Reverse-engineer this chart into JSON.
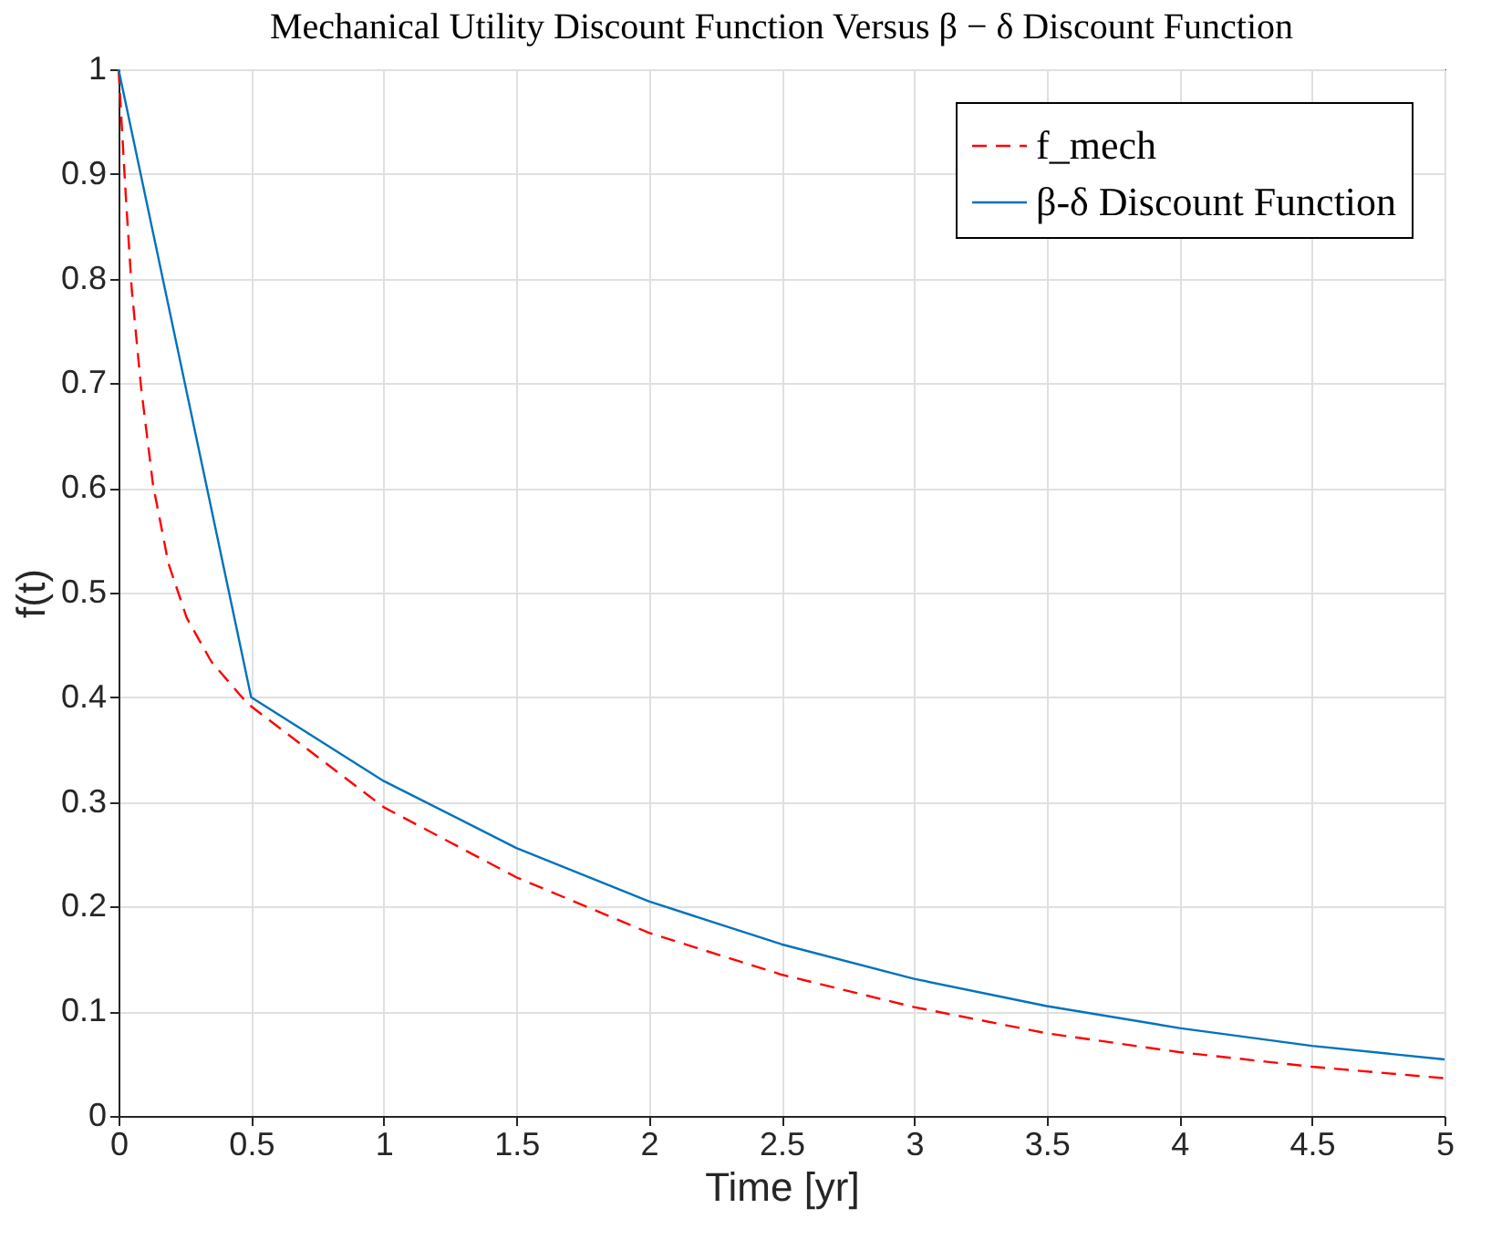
{
  "chart_data": {
    "type": "line",
    "title": "Mechanical Utility Discount Function Versus β − δ Discount Function",
    "xlabel": "Time [yr]",
    "ylabel": "f(t)",
    "xlim": [
      0,
      5
    ],
    "xticks": [
      0,
      0.5,
      1,
      1.5,
      2,
      2.5,
      3,
      3.5,
      4,
      4.5,
      5
    ],
    "ylim": [
      0,
      1
    ],
    "yticks": [
      0,
      0.1,
      0.2,
      0.3,
      0.4,
      0.5,
      0.6,
      0.7,
      0.8,
      0.9,
      1
    ],
    "grid": true,
    "legend": "top right",
    "marker": "none",
    "series": [
      {
        "name": "f_mech",
        "color": "#ff0000",
        "line_style": "dashed",
        "x": [
          0,
          0.028,
          0.05,
          0.085,
          0.13,
          0.188,
          0.257,
          0.35,
          0.486,
          1,
          1.5,
          2,
          2.5,
          3,
          3.5,
          4,
          4.5,
          5
        ],
        "values": [
          1,
          0.876,
          0.789,
          0.696,
          0.603,
          0.528,
          0.476,
          0.434,
          0.394,
          0.295,
          0.228,
          0.175,
          0.135,
          0.104,
          0.079,
          0.061,
          0.047,
          0.036
        ]
      },
      {
        "name": "β-δ Discount Function",
        "color": "#0072bd",
        "line_style": "solid",
        "x": [
          0,
          0.5,
          1,
          1.5,
          2,
          2.5,
          3,
          3.5,
          4,
          4.5,
          5
        ],
        "values": [
          1,
          0.4,
          0.32,
          0.256,
          0.205,
          0.164,
          0.131,
          0.105,
          0.084,
          0.067,
          0.054
        ]
      }
    ]
  }
}
